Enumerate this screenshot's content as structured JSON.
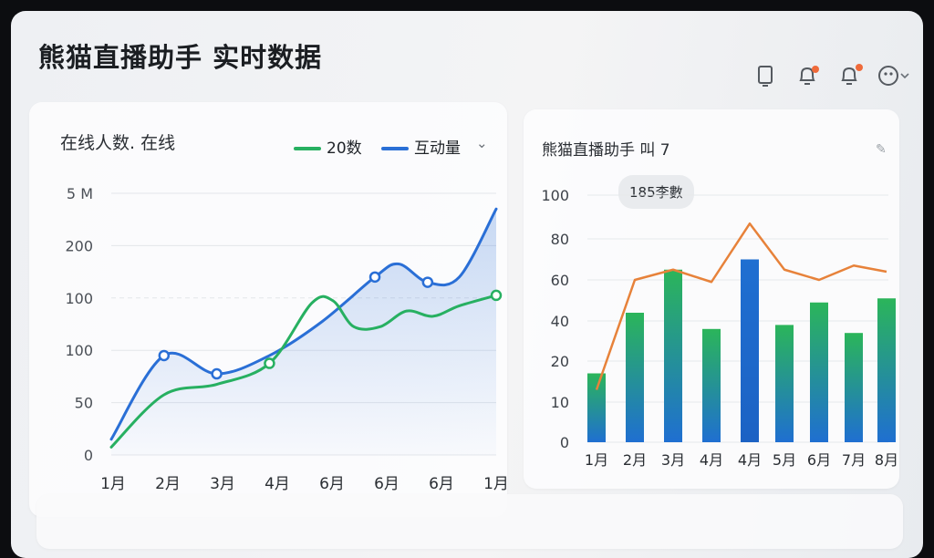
{
  "header": {
    "title": "熊猫直播助手 实时数据",
    "icons": [
      "tablet-icon",
      "bell-icon",
      "notification-bell-icon",
      "user-avatar-icon"
    ],
    "badge_color": "#ef6a3a"
  },
  "left_card": {
    "title": "在线人数. 在线",
    "legend": [
      {
        "label": "20数",
        "color": "#27b061"
      },
      {
        "label": "互动量",
        "color": "#2a6fd6"
      }
    ]
  },
  "right_card": {
    "title": "熊猫直播助手 叫 7",
    "bubble": "185李數"
  },
  "chart_data": [
    {
      "type": "line",
      "ytick_labels": [
        "0",
        "50",
        "100",
        "100",
        "200",
        "5 M"
      ],
      "xtick_labels": [
        "1月",
        "2月",
        "3月",
        "4月",
        "6月",
        "6月",
        "6月",
        "1月"
      ],
      "series": [
        {
          "name": "互动量",
          "color": "#2a6fd6",
          "points": [
            [
              0,
              0.3
            ],
            [
              1,
              1.9
            ],
            [
              2,
              1.55
            ],
            [
              3,
              1.9
            ],
            [
              4,
              2.55
            ],
            [
              5,
              3.4
            ],
            [
              5.45,
              3.65
            ],
            [
              6,
              3.3
            ],
            [
              6.6,
              3.4
            ],
            [
              7.3,
              4.7
            ]
          ],
          "markers": [
            1,
            2,
            5,
            7
          ]
        },
        {
          "name": "20数",
          "color": "#27b061",
          "points": [
            [
              0,
              0.15
            ],
            [
              1,
              1.15
            ],
            [
              2,
              1.35
            ],
            [
              3,
              1.75
            ],
            [
              3.8,
              2.9
            ],
            [
              4.2,
              2.95
            ],
            [
              4.6,
              2.45
            ],
            [
              5.1,
              2.45
            ],
            [
              5.6,
              2.75
            ],
            [
              6.1,
              2.65
            ],
            [
              6.6,
              2.85
            ],
            [
              7.3,
              3.05
            ]
          ],
          "markers": [
            3,
            11
          ]
        }
      ]
    },
    {
      "type": "bar",
      "categories": [
        "1月",
        "2月",
        "3月",
        "4月",
        "4月",
        "5月",
        "6月",
        "7月",
        "8月"
      ],
      "values": [
        17,
        44,
        65,
        36,
        70,
        38,
        49,
        34,
        51
      ],
      "line_values": [
        13,
        60,
        65,
        59,
        87,
        65,
        60,
        67,
        64
      ],
      "yticks": [
        0,
        10,
        20,
        40,
        60,
        80,
        100
      ],
      "ylim": [
        0,
        100
      ],
      "bar_colors": [
        "#2bb55a",
        "#1f6fd1"
      ],
      "line_color": "#e7823a"
    }
  ]
}
